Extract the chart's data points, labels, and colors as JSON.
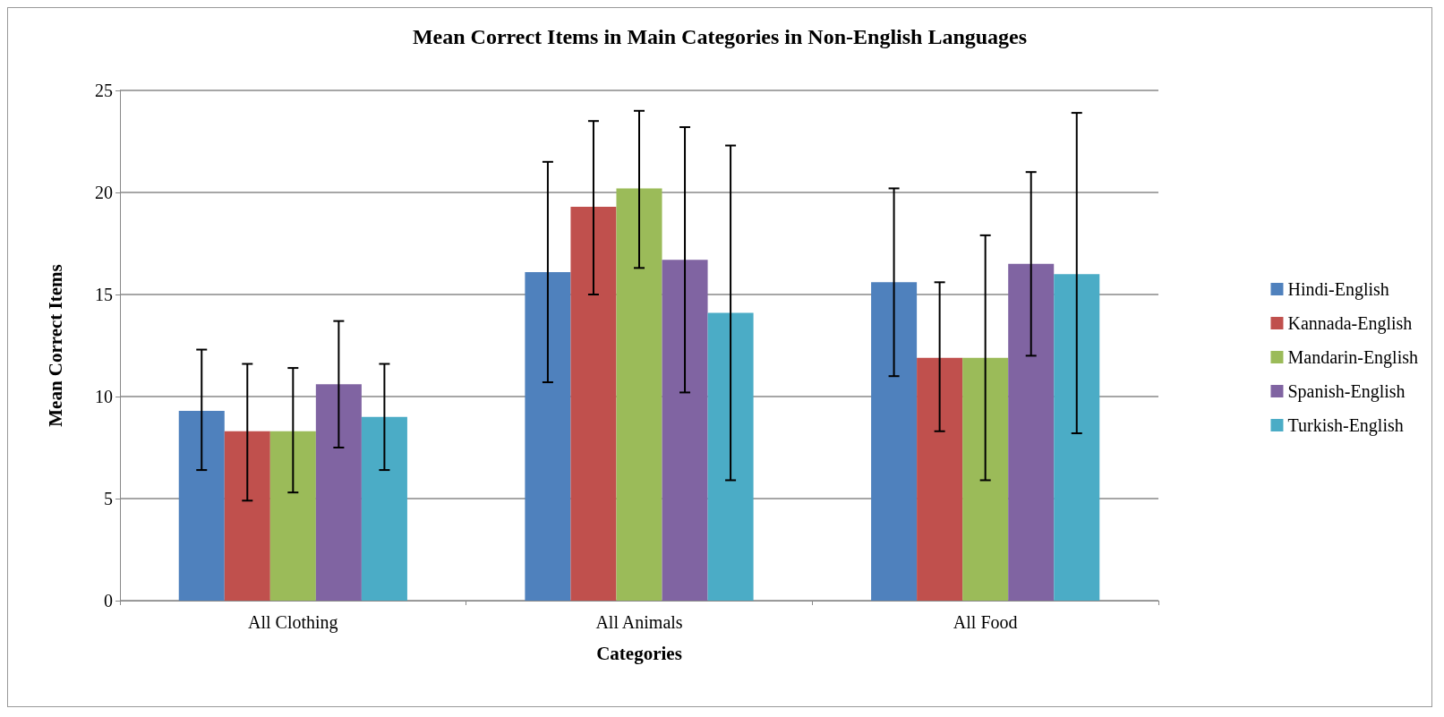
{
  "chart_data": {
    "type": "bar",
    "title": "Mean Correct Items in Main Categories in Non-English Languages",
    "xlabel": "Categories",
    "ylabel": "Mean Correct Items",
    "categories": [
      "All Clothing",
      "All Animals",
      "All Food"
    ],
    "series": [
      {
        "name": "Hindi-English",
        "color": "#4f81bd",
        "values": [
          9.3,
          16.1,
          15.6
        ],
        "errors": [
          [
            6.4,
            12.3
          ],
          [
            10.7,
            21.5
          ],
          [
            11.0,
            20.2
          ]
        ]
      },
      {
        "name": "Kannada-English",
        "color": "#c0504d",
        "values": [
          8.3,
          19.3,
          11.9
        ],
        "errors": [
          [
            4.9,
            11.6
          ],
          [
            15.0,
            23.5
          ],
          [
            8.3,
            15.6
          ]
        ]
      },
      {
        "name": "Mandarin-English",
        "color": "#9bbb59",
        "values": [
          8.3,
          20.2,
          11.9
        ],
        "errors": [
          [
            5.3,
            11.4
          ],
          [
            16.3,
            24.0
          ],
          [
            5.9,
            17.9
          ]
        ]
      },
      {
        "name": "Spanish-English",
        "color": "#8064a2",
        "values": [
          10.6,
          16.7,
          16.5
        ],
        "errors": [
          [
            7.5,
            13.7
          ],
          [
            10.2,
            23.2
          ],
          [
            12.0,
            21.0
          ]
        ]
      },
      {
        "name": "Turkish-English",
        "color": "#4bacc6",
        "values": [
          9.0,
          14.1,
          16.0
        ],
        "errors": [
          [
            6.4,
            11.6
          ],
          [
            5.9,
            22.3
          ],
          [
            8.2,
            23.9
          ]
        ]
      }
    ],
    "ylim": [
      0,
      25
    ],
    "yticks": [
      0,
      5,
      10,
      15,
      20,
      25
    ],
    "grid": "y",
    "legend": "right"
  }
}
